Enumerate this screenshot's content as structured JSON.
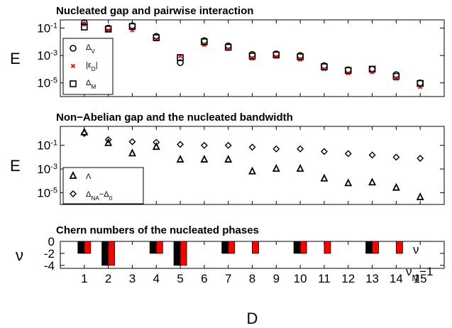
{
  "chart_data": [
    {
      "type": "scatter",
      "title": "Nucleated gap and pairwise interaction",
      "ylabel": "E",
      "xlabel": "",
      "yscale": "log",
      "xlim": [
        0,
        16
      ],
      "ylim": [
        1e-06,
        0.4
      ],
      "yticks": [
        {
          "value": 0.1,
          "base": "10",
          "exp": "-1"
        },
        {
          "value": 0.001,
          "base": "10",
          "exp": "-3"
        },
        {
          "value": 1e-05,
          "base": "10",
          "exp": "-5"
        }
      ],
      "legend_position": "lower-left",
      "series": [
        {
          "name": "Δ_V",
          "label_main": "Δ",
          "label_sub": "V",
          "marker": "circle",
          "color": "#000000",
          "x": [
            1,
            2,
            3,
            4,
            5,
            6,
            7,
            8,
            9,
            10,
            11,
            12,
            13,
            14,
            15
          ],
          "values": [
            0.25,
            0.1,
            0.15,
            0.025,
            0.0003,
            0.012,
            0.005,
            0.0012,
            0.0013,
            0.001,
            0.00018,
            9e-05,
            0.0001,
            4e-05,
            1e-05
          ]
        },
        {
          "name": "|ε_D|",
          "label_main": "|ε",
          "label_sub": "D",
          "label_tail": "|",
          "marker": "x",
          "color": "#ff0000",
          "x": [
            1,
            2,
            3,
            4,
            5,
            6,
            7,
            8,
            9,
            10,
            11,
            12,
            13,
            14,
            15
          ],
          "values": [
            0.2,
            0.07,
            0.07,
            0.015,
            0.0009,
            0.006,
            0.003,
            0.0006,
            0.0008,
            0.0005,
            0.0001,
            5e-05,
            6e-05,
            2e-05,
            5e-06
          ]
        },
        {
          "name": "Δ_M",
          "label_main": "Δ",
          "label_sub": "M",
          "marker": "square",
          "color": "#000000",
          "x": [
            1,
            2,
            3,
            4,
            5,
            6,
            7,
            8,
            9,
            10,
            11,
            12,
            13,
            14,
            15
          ],
          "values": [
            0.12,
            0.085,
            0.13,
            0.02,
            0.0007,
            0.01,
            0.004,
            0.0009,
            0.0011,
            0.0008,
            0.00015,
            8e-05,
            0.0001,
            3e-05,
            9e-06
          ]
        }
      ]
    },
    {
      "type": "scatter",
      "title": "Non−Abelian gap and the nucleated bandwidth",
      "ylabel": "E",
      "xlabel": "",
      "yscale": "log",
      "xlim": [
        0,
        16
      ],
      "ylim": [
        1e-06,
        4
      ],
      "yticks": [
        {
          "value": 0.1,
          "base": "10",
          "exp": "-1"
        },
        {
          "value": 0.001,
          "base": "10",
          "exp": "-3"
        },
        {
          "value": 1e-05,
          "base": "10",
          "exp": "-5"
        }
      ],
      "legend_position": "lower-left",
      "series": [
        {
          "name": "Λ",
          "label_main": "Λ",
          "marker": "triangle",
          "color": "#000000",
          "x": [
            1,
            2,
            3,
            4,
            5,
            6,
            7,
            8,
            9,
            10,
            11,
            12,
            13,
            14,
            15
          ],
          "values": [
            1.2,
            0.15,
            0.02,
            0.07,
            0.006,
            0.006,
            0.006,
            0.0006,
            0.001,
            0.001,
            0.00015,
            6e-05,
            7e-05,
            2.5e-05,
            4e-06
          ]
        },
        {
          "name": "Δ_NA−Δ_0",
          "label_main": "Δ",
          "label_sub": "NA",
          "label_tail": "−Δ",
          "label_sub2": "0",
          "marker": "diamond",
          "color": "#000000",
          "x": [
            1,
            2,
            3,
            4,
            5,
            6,
            7,
            8,
            9,
            10,
            11,
            12,
            13,
            14,
            15
          ],
          "values": [
            1.0,
            0.3,
            0.2,
            0.18,
            0.12,
            0.1,
            0.1,
            0.07,
            0.05,
            0.05,
            0.03,
            0.02,
            0.015,
            0.01,
            0.008
          ]
        }
      ]
    },
    {
      "type": "bar",
      "title": "Chern numbers of the nucleated phases",
      "ylabel": "ν",
      "xlabel": "D",
      "xlim": [
        0,
        16
      ],
      "ylim": [
        -4.5,
        0
      ],
      "yticks": [
        0,
        -2,
        -4
      ],
      "categories": [
        1,
        2,
        3,
        4,
        5,
        6,
        7,
        8,
        9,
        10,
        11,
        12,
        13,
        14,
        15
      ],
      "legend_position": "right",
      "series": [
        {
          "name": "ν",
          "label_main": "ν",
          "color": "#000000",
          "values": [
            -2,
            -4,
            0,
            -2,
            -4,
            0,
            -2,
            0,
            0,
            -2,
            0,
            0,
            -2,
            0,
            0
          ]
        },
        {
          "name": "ν_M−1",
          "label_main": "ν",
          "label_sub": "M",
          "label_tail": "−1",
          "color": "#ff0000",
          "values": [
            -2,
            -4,
            0,
            -2,
            -4,
            0,
            -2,
            -2,
            0,
            -2,
            -2,
            0,
            -2,
            -2,
            0
          ]
        }
      ]
    }
  ]
}
